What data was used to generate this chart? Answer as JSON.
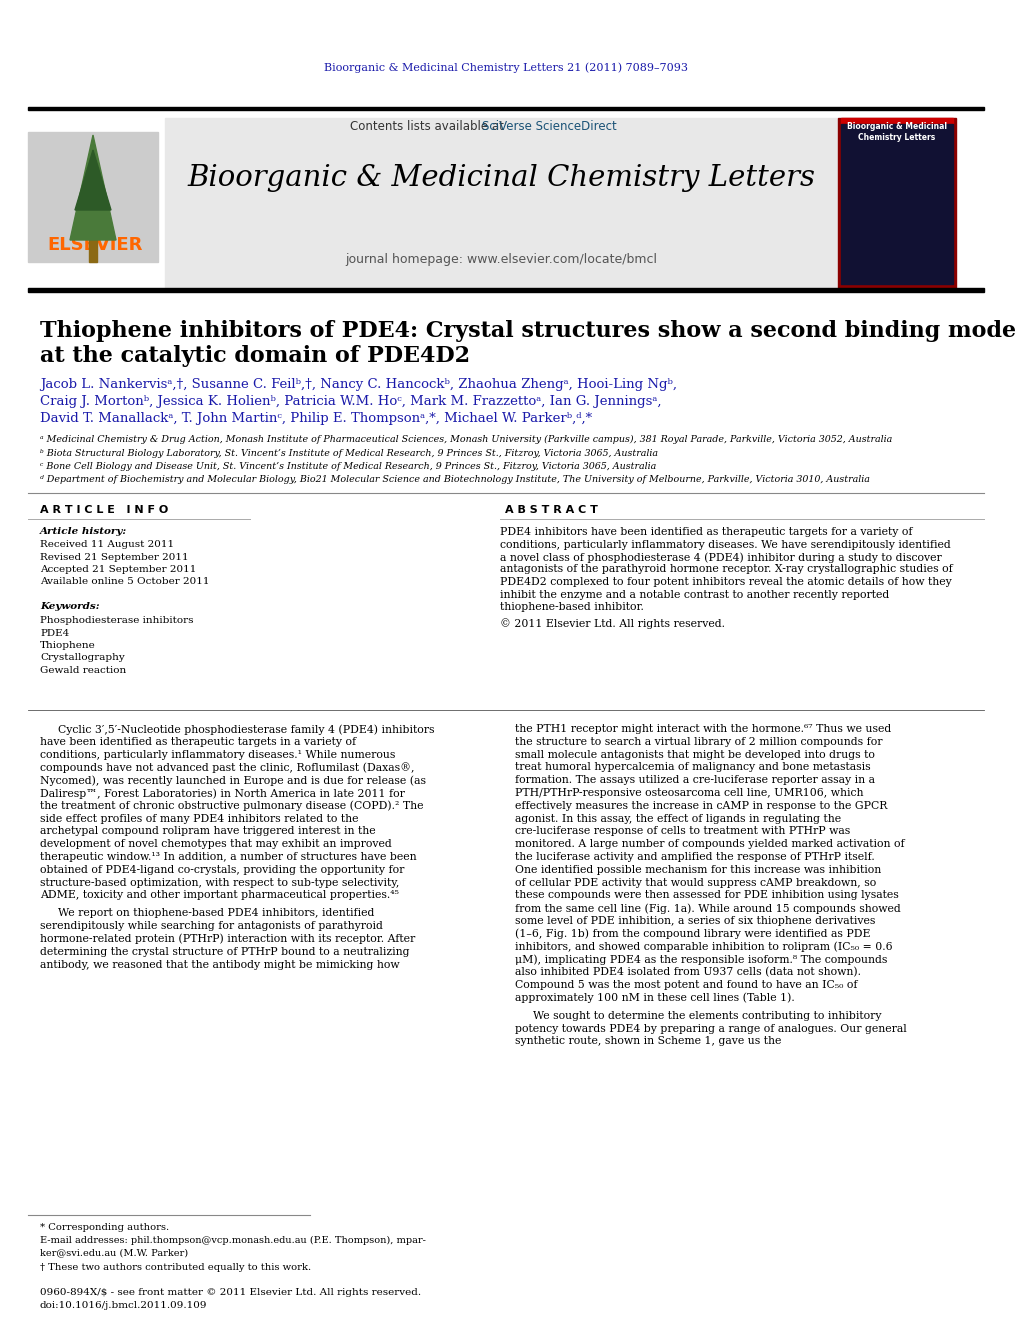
{
  "page_bg": "#ffffff",
  "journal_citation": "Bioorganic & Medicinal Chemistry Letters 21 (2011) 7089–7093",
  "journal_citation_color": "#1a1aaa",
  "journal_name": "Bioorganic & Medicinal Chemistry Letters",
  "journal_homepage": "journal homepage: www.elsevier.com/locate/bmcl",
  "elsevier_color": "#FF6600",
  "contents_prefix": "Contents lists available at ",
  "sciverse": "SciVerse ScienceDirect",
  "sciverse_color": "#1a5276",
  "header_bg": "#e8e8e8",
  "title_line1": "Thiophene inhibitors of PDE4: Crystal structures show a second binding mode",
  "title_line2": "at the catalytic domain of PDE4D2",
  "authors_line1": "Jacob L. Nankervisᵃ,†, Susanne C. Feilᵇ,†, Nancy C. Hancockᵇ, Zhaohua Zhengᵃ, Hooi-Ling Ngᵇ,",
  "authors_line2": "Craig J. Mortonᵇ, Jessica K. Holienᵇ, Patricia W.M. Hoᶜ, Mark M. Frazzettoᵃ, Ian G. Jenningsᵃ,",
  "authors_line3": "David T. Manallackᵃ, T. John Martinᶜ, Philip E. Thompsonᵃ,*, Michael W. Parkerᵇ,ᵈ,*",
  "affil_a": "ᵃ Medicinal Chemistry & Drug Action, Monash Institute of Pharmaceutical Sciences, Monash University (Parkville campus), 381 Royal Parade, Parkville, Victoria 3052, Australia",
  "affil_b": "ᵇ Biota Structural Biology Laboratory, St. Vincent’s Institute of Medical Research, 9 Princes St., Fitzroy, Victoria 3065, Australia",
  "affil_c": "ᶜ Bone Cell Biology and Disease Unit, St. Vincent’s Institute of Medical Research, 9 Princes St., Fitzroy, Victoria 3065, Australia",
  "affil_d": "ᵈ Department of Biochemistry and Molecular Biology, Bio21 Molecular Science and Biotechnology Institute, The University of Melbourne, Parkville, Victoria 3010, Australia",
  "article_info_header": "A R T I C L E   I N F O",
  "article_history_header": "Article history:",
  "received": "Received 11 August 2011",
  "revised": "Revised 21 September 2011",
  "accepted": "Accepted 21 September 2011",
  "available": "Available online 5 October 2011",
  "keywords_header": "Keywords:",
  "keywords": [
    "Phosphodiesterase inhibitors",
    "PDE4",
    "Thiophene",
    "Crystallography",
    "Gewald reaction"
  ],
  "abstract_header": "A B S T R A C T",
  "abstract_text": "PDE4 inhibitors have been identified as therapeutic targets for a variety of conditions, particularly inflammatory diseases. We have serendipitously identified a novel class of phosphodiesterase 4 (PDE4) inhibitor during a study to discover antagonists of the parathyroid hormone receptor. X-ray crystallographic studies of PDE4D2 complexed to four potent inhibitors reveal the atomic details of how they inhibit the enzyme and a notable contrast to another recently reported thiophene-based inhibitor.",
  "copyright": "© 2011 Elsevier Ltd. All rights reserved.",
  "body_col1_para1": "Cyclic 3′,5′-Nucleotide phosphodiesterase family 4 (PDE4) inhibitors have been identified as therapeutic targets in a variety of conditions, particularly inflammatory diseases.¹ While numerous compounds have not advanced past the clinic, Roflumilast (Daxas®, Nycomed), was recently launched in Europe and is due for release (as Daliresp™, Forest Laboratories) in North America in late 2011 for the treatment of chronic obstructive pulmonary disease (COPD).² The side effect profiles of many PDE4 inhibitors related to the archetypal compound rolipram have triggered interest in the development of novel chemotypes that may exhibit an improved therapeutic window.¹³ In addition, a number of structures have been obtained of PDE4-ligand co-crystals, providing the opportunity for structure-based optimization, with respect to sub-type selectivity, ADME, toxicity and other important pharmaceutical properties.⁴⁵",
  "body_col1_para2": "We report on thiophene-based PDE4 inhibitors, identified serendipitously while searching for antagonists of parathyroid hormone-related protein (PTHrP) interaction with its receptor. After determining the crystal structure of PTHrP bound to a neutralizing antibody, we reasoned that the antibody might be mimicking how",
  "body_col2_para1": "the PTH1 receptor might interact with the hormone.⁶⁷ Thus we used the structure to search a virtual library of 2 million compounds for small molecule antagonists that might be developed into drugs to treat humoral hypercalcemia of malignancy and bone metastasis formation. The assays utilized a cre-luciferase reporter assay in a PTH/PTHrP-responsive osteosarcoma cell line, UMR106, which effectively measures the increase in cAMP in response to the GPCR agonist. In this assay, the effect of ligands in regulating the cre-luciferase response of cells to treatment with PTHrP was monitored. A large number of compounds yielded marked activation of the luciferase activity and amplified the response of PTHrP itself. One identified possible mechanism for this increase was inhibition of cellular PDE activity that would suppress cAMP breakdown, so these compounds were then assessed for PDE inhibition using lysates from the same cell line (Fig. 1a). While around 15 compounds showed some level of PDE inhibition, a series of six thiophene derivatives (1–6, Fig. 1b) from the compound library were identified as PDE inhibitors, and showed comparable inhibition to rolipram (IC₅₀ = 0.6 μM), implicating PDE4 as the responsible isoform.⁸ The compounds also inhibited PDE4 isolated from U937 cells (data not shown). Compound 5 was the most potent and found to have an IC₅₀ of approximately 100 nM in these cell lines (Table 1).",
  "body_col2_para2": "We sought to determine the elements contributing to inhibitory potency towards PDE4 by preparing a range of analogues. Our general synthetic route, shown in Scheme 1, gave us the",
  "footnote_star": "* Corresponding authors.",
  "footnote_email1": "E-mail addresses: phil.thompson@vcp.monash.edu.au (P.E. Thompson), mpar-",
  "footnote_email2": "ker@svi.edu.au (M.W. Parker)",
  "footnote_dagger": "† These two authors contributed equally to this work.",
  "footer_issn": "0960-894X/$ - see front matter © 2011 Elsevier Ltd. All rights reserved.",
  "footer_doi": "doi:10.1016/j.bmcl.2011.09.109"
}
